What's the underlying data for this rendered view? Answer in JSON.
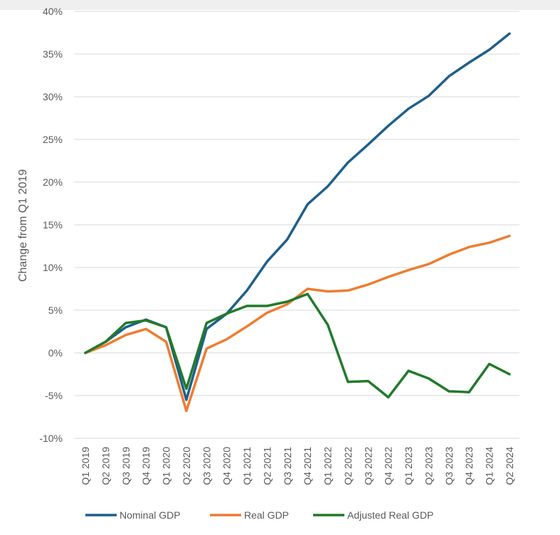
{
  "chart_data": {
    "type": "line",
    "title": "",
    "xlabel": "",
    "ylabel": "Change from Q1 2019",
    "categories": [
      "Q1 2019",
      "Q2 2019",
      "Q3 2019",
      "Q4 2019",
      "Q1 2020",
      "Q2 2020",
      "Q3 2020",
      "Q4 2020",
      "Q1 2021",
      "Q2 2021",
      "Q3 2021",
      "Q4 2021",
      "Q1 2022",
      "Q2 2022",
      "Q3 2022",
      "Q4 2022",
      "Q1 2023",
      "Q2 2023",
      "Q3 2023",
      "Q4 2023",
      "Q1 2024",
      "Q2 2024"
    ],
    "ylim": [
      -10,
      40
    ],
    "yticks": [
      -10,
      -5,
      0,
      5,
      10,
      15,
      20,
      25,
      30,
      35,
      40
    ],
    "ytick_labels": [
      "-10%",
      "-5%",
      "0%",
      "5%",
      "10%",
      "15%",
      "20%",
      "25%",
      "30%",
      "35%",
      "40%"
    ],
    "grid": "horizontal",
    "legend_position": "bottom",
    "series": [
      {
        "name": "Nominal GDP",
        "color": "#1f5f8b",
        "values": [
          0,
          1.3,
          3.0,
          3.9,
          3.0,
          -5.5,
          2.8,
          4.6,
          7.3,
          10.7,
          13.3,
          17.4,
          19.5,
          22.3,
          24.4,
          26.6,
          28.6,
          30.1,
          32.4,
          34.0,
          35.5,
          37.4
        ]
      },
      {
        "name": "Real GDP",
        "color": "#ed7d31",
        "values": [
          0,
          0.9,
          2.1,
          2.8,
          1.3,
          -6.8,
          0.5,
          1.6,
          3.1,
          4.7,
          5.7,
          7.5,
          7.2,
          7.3,
          8.0,
          8.9,
          9.7,
          10.4,
          11.5,
          12.4,
          12.9,
          13.7
        ]
      },
      {
        "name": "Adjusted Real GDP",
        "color": "#217a2a",
        "values": [
          0,
          1.3,
          3.5,
          3.8,
          3.0,
          -4.2,
          3.5,
          4.6,
          5.5,
          5.5,
          6.0,
          6.9,
          3.3,
          -3.4,
          -3.3,
          -5.2,
          -2.1,
          -3.0,
          -4.5,
          -4.6,
          -1.3,
          -2.5
        ]
      }
    ]
  }
}
